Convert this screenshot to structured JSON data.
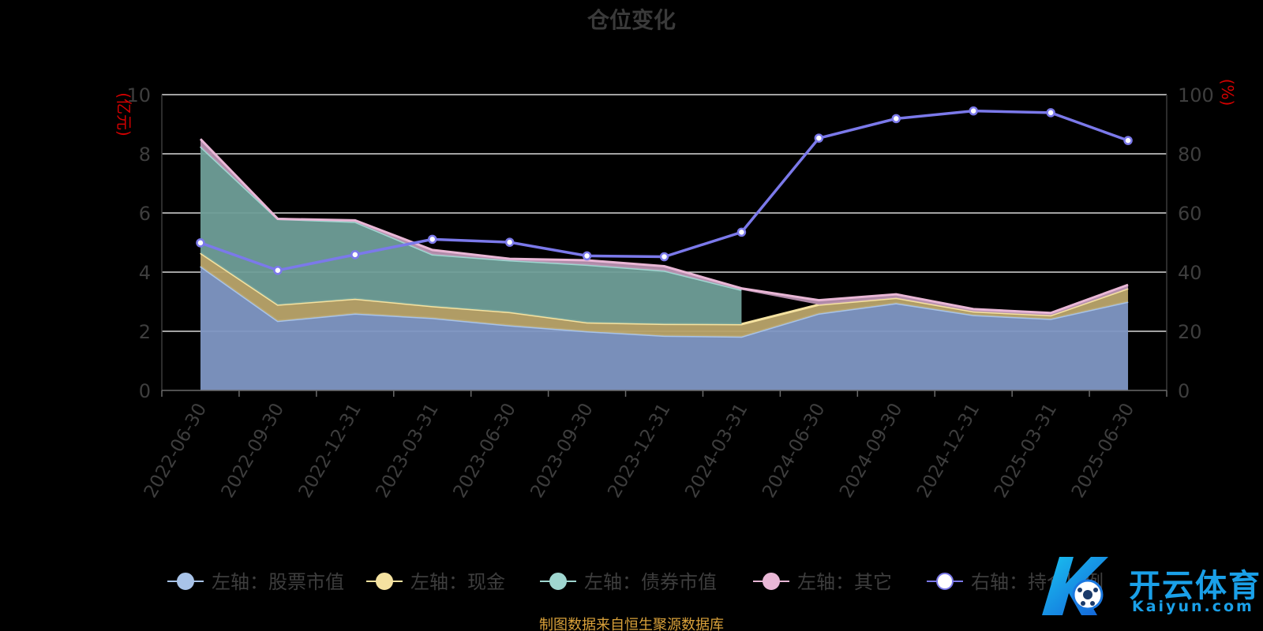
{
  "chart_data": {
    "type": "area",
    "title": "仓位变化",
    "left_axis_unit": "(亿元)",
    "right_axis_unit": "(%)",
    "left_ylim": [
      0,
      10
    ],
    "left_ticks": [
      0,
      2,
      4,
      6,
      8,
      10
    ],
    "right_ylim": [
      0,
      100
    ],
    "right_ticks": [
      0,
      20,
      40,
      60,
      80,
      100
    ],
    "grid": true,
    "legend_position": "bottom",
    "categories": [
      "2022-06-30",
      "2022-09-30",
      "2022-12-31",
      "2023-03-31",
      "2023-06-30",
      "2023-09-30",
      "2023-12-31",
      "2024-03-31",
      "2024-06-30",
      "2024-09-30",
      "2024-12-31",
      "2025-03-31",
      "2025-06-30"
    ],
    "series": [
      {
        "name": "左轴：股票市值",
        "axis": "left",
        "kind": "stacked-area",
        "color": "#a8c3e8",
        "fill": "#7f97c4",
        "values": [
          4.2,
          2.35,
          2.6,
          2.45,
          2.2,
          2.0,
          1.85,
          1.82,
          2.6,
          2.95,
          2.55,
          2.42,
          3.0
        ]
      },
      {
        "name": "左轴：现金",
        "axis": "left",
        "kind": "stacked-area",
        "color": "#f5e2a0",
        "fill": "#b9a46a",
        "values": [
          0.45,
          0.55,
          0.5,
          0.4,
          0.45,
          0.3,
          0.4,
          0.42,
          0.3,
          0.18,
          0.12,
          0.12,
          0.45
        ]
      },
      {
        "name": "左轴：债券市值",
        "axis": "left",
        "kind": "stacked-area",
        "color": "#9fd6d0",
        "fill": "#6f9e98",
        "values": [
          3.6,
          2.9,
          2.6,
          1.75,
          1.75,
          1.95,
          1.8,
          1.16,
          0,
          0,
          0,
          0,
          0
        ]
      },
      {
        "name": "左轴：其它",
        "axis": "left",
        "kind": "stacked-area",
        "color": "#e9b7d6",
        "fill": "#b890b0",
        "values": [
          0.25,
          0.0,
          0.05,
          0.15,
          0.05,
          0.15,
          0.15,
          0.05,
          0.15,
          0.12,
          0.08,
          0.08,
          0.12
        ]
      },
      {
        "name": "右轴：持仓比例",
        "axis": "right",
        "kind": "line",
        "color": "#7b79ea",
        "values": [
          49.9,
          40.6,
          45.9,
          51.1,
          50.1,
          45.5,
          45.2,
          53.5,
          85.3,
          91.9,
          94.5,
          93.9,
          84.5
        ]
      }
    ]
  },
  "footer": "制图数据来自恒生聚源数据库",
  "watermark": {
    "text": "开云体育",
    "sub": "Kaiyun.com"
  }
}
